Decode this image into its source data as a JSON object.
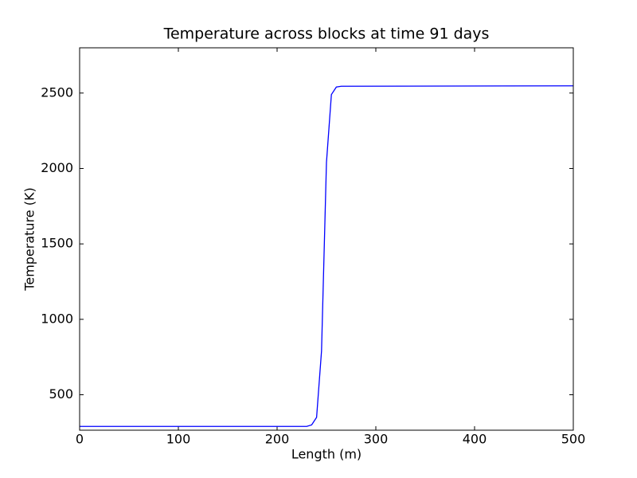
{
  "chart_data": {
    "type": "line",
    "title": "Temperature across blocks at time 91 days",
    "x_label": "Length (m)",
    "y_label": "Temperature (K)",
    "x": [
      0,
      230,
      235,
      240,
      245,
      250,
      255,
      260,
      265,
      500
    ],
    "series": [
      {
        "color": "#0000ff",
        "values": [
          290,
          290,
          300,
          350,
          790,
          2040,
          2490,
          2540,
          2545,
          2548
        ]
      }
    ],
    "xlim": [
      0,
      500
    ],
    "xticks": [
      0,
      100,
      200,
      300,
      400,
      500
    ],
    "ylim": [
      265,
      2800
    ],
    "yticks": [
      500,
      1000,
      1500,
      2000,
      2500
    ],
    "grid": false
  }
}
